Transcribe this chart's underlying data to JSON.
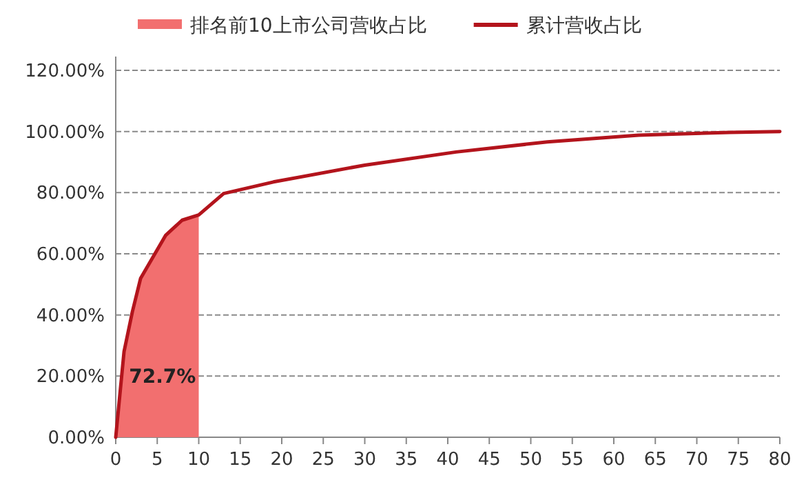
{
  "chart_data": {
    "type": "line",
    "annotations": [
      "72.7%"
    ],
    "series": [
      {
        "name": "排名前10上市公司营收占比",
        "type": "area",
        "color": "#f26f6f",
        "x": [
          0,
          1,
          2,
          3,
          4.5,
          6,
          8,
          10
        ],
        "values": [
          0,
          28,
          41,
          52,
          59,
          66,
          71,
          72.7
        ]
      },
      {
        "name": "累计营收占比",
        "color": "#b3141c",
        "x": [
          0,
          1,
          2,
          3,
          4.5,
          6,
          8,
          10,
          13,
          19,
          30,
          41,
          52,
          63,
          74,
          80
        ],
        "values": [
          0,
          28,
          41,
          52,
          59,
          66,
          71,
          72.7,
          79.7,
          83.5,
          89,
          93.3,
          96.6,
          98.8,
          99.7,
          100
        ]
      }
    ],
    "xlim": [
      0,
      80
    ],
    "xticks": [
      0,
      5,
      10,
      15,
      20,
      25,
      30,
      35,
      40,
      45,
      50,
      55,
      60,
      65,
      70,
      75,
      80
    ],
    "ylim": [
      0,
      120
    ],
    "yticks": [
      {
        "value": 0,
        "label": "0.00%"
      },
      {
        "value": 20,
        "label": "20.00%"
      },
      {
        "value": 40,
        "label": "40.00%"
      },
      {
        "value": 60,
        "label": "60.00%"
      },
      {
        "value": 80,
        "label": "80.00%"
      },
      {
        "value": 100,
        "label": "100.00%"
      },
      {
        "value": 120,
        "label": "120.00%"
      }
    ],
    "grid": "y",
    "legend": "top"
  }
}
